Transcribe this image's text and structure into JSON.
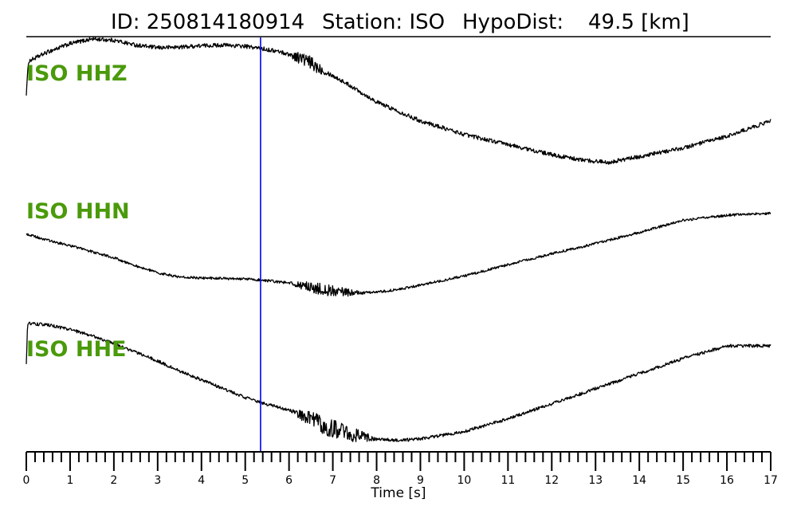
{
  "chart_data": {
    "type": "line",
    "title": {
      "id_label": "ID:",
      "id_value": "250814180914",
      "station_label": "Station:",
      "station_value": "ISO",
      "hypodist_label": "HypoDist:",
      "hypodist_value": "49.5 [km]"
    },
    "xlabel": "Time [s]",
    "xlim": [
      0,
      17
    ],
    "major_ticks": [
      0,
      1,
      2,
      3,
      4,
      5,
      6,
      7,
      8,
      9,
      10,
      11,
      12,
      13,
      14,
      15,
      16,
      17
    ],
    "minor_tick_step": 0.2,
    "pick_time": 5.35,
    "pick_color": "#0000ff",
    "trace_color": "#000000",
    "label_color": "#4a9a0a",
    "series": [
      {
        "name": "ISO HHZ",
        "noise": 0.03,
        "burst": {
          "start": 6.0,
          "end": 7.5,
          "amp": 0.09
        },
        "points": [
          [
            0,
            0.18
          ],
          [
            0.05,
            0.66
          ],
          [
            0.5,
            0.8
          ],
          [
            1,
            0.92
          ],
          [
            1.5,
            0.99
          ],
          [
            2,
            0.97
          ],
          [
            2.5,
            0.9
          ],
          [
            3,
            0.86
          ],
          [
            3.5,
            0.87
          ],
          [
            4,
            0.89
          ],
          [
            4.5,
            0.9
          ],
          [
            5,
            0.88
          ],
          [
            5.35,
            0.85
          ],
          [
            5.8,
            0.8
          ],
          [
            6.3,
            0.7
          ],
          [
            6.8,
            0.52
          ],
          [
            7.4,
            0.3
          ],
          [
            8,
            0.06
          ],
          [
            9,
            -0.22
          ],
          [
            10,
            -0.42
          ],
          [
            11,
            -0.57
          ],
          [
            12,
            -0.72
          ],
          [
            12.7,
            -0.8
          ],
          [
            13.3,
            -0.83
          ],
          [
            14,
            -0.75
          ],
          [
            15,
            -0.62
          ],
          [
            16,
            -0.45
          ],
          [
            17,
            -0.22
          ]
        ]
      },
      {
        "name": "ISO HHN",
        "noise": 0.025,
        "burst": {
          "start": 6.0,
          "end": 8.8,
          "amp": 0.11
        },
        "points": [
          [
            0,
            0.55
          ],
          [
            0.5,
            0.42
          ],
          [
            1,
            0.32
          ],
          [
            1.5,
            0.2
          ],
          [
            2,
            0.08
          ],
          [
            2.5,
            -0.08
          ],
          [
            3,
            -0.22
          ],
          [
            3.5,
            -0.3
          ],
          [
            4,
            -0.32
          ],
          [
            4.5,
            -0.33
          ],
          [
            5,
            -0.34
          ],
          [
            5.35,
            -0.36
          ],
          [
            6,
            -0.42
          ],
          [
            6.5,
            -0.5
          ],
          [
            7,
            -0.58
          ],
          [
            7.5,
            -0.62
          ],
          [
            8,
            -0.6
          ],
          [
            8.5,
            -0.55
          ],
          [
            9,
            -0.46
          ],
          [
            10,
            -0.28
          ],
          [
            11,
            -0.06
          ],
          [
            12,
            0.16
          ],
          [
            13,
            0.36
          ],
          [
            14,
            0.58
          ],
          [
            15,
            0.82
          ],
          [
            16,
            0.92
          ],
          [
            17,
            0.96
          ]
        ]
      },
      {
        "name": "ISO HHE",
        "noise": 0.025,
        "burst": {
          "start": 6.05,
          "end": 9.2,
          "amp": 0.16
        },
        "points": [
          [
            0,
            0.32
          ],
          [
            0.03,
            0.98
          ],
          [
            0.5,
            0.95
          ],
          [
            1,
            0.88
          ],
          [
            1.5,
            0.78
          ],
          [
            2,
            0.66
          ],
          [
            2.5,
            0.52
          ],
          [
            3,
            0.38
          ],
          [
            3.5,
            0.22
          ],
          [
            4,
            0.08
          ],
          [
            4.5,
            -0.06
          ],
          [
            5,
            -0.2
          ],
          [
            5.35,
            -0.28
          ],
          [
            6,
            -0.4
          ],
          [
            6.5,
            -0.55
          ],
          [
            7,
            -0.7
          ],
          [
            7.5,
            -0.8
          ],
          [
            8,
            -0.86
          ],
          [
            8.5,
            -0.88
          ],
          [
            9,
            -0.86
          ],
          [
            10,
            -0.74
          ],
          [
            11,
            -0.54
          ],
          [
            12,
            -0.3
          ],
          [
            13,
            -0.06
          ],
          [
            14,
            0.18
          ],
          [
            15,
            0.42
          ],
          [
            16,
            0.62
          ],
          [
            17,
            0.62
          ]
        ]
      }
    ]
  }
}
